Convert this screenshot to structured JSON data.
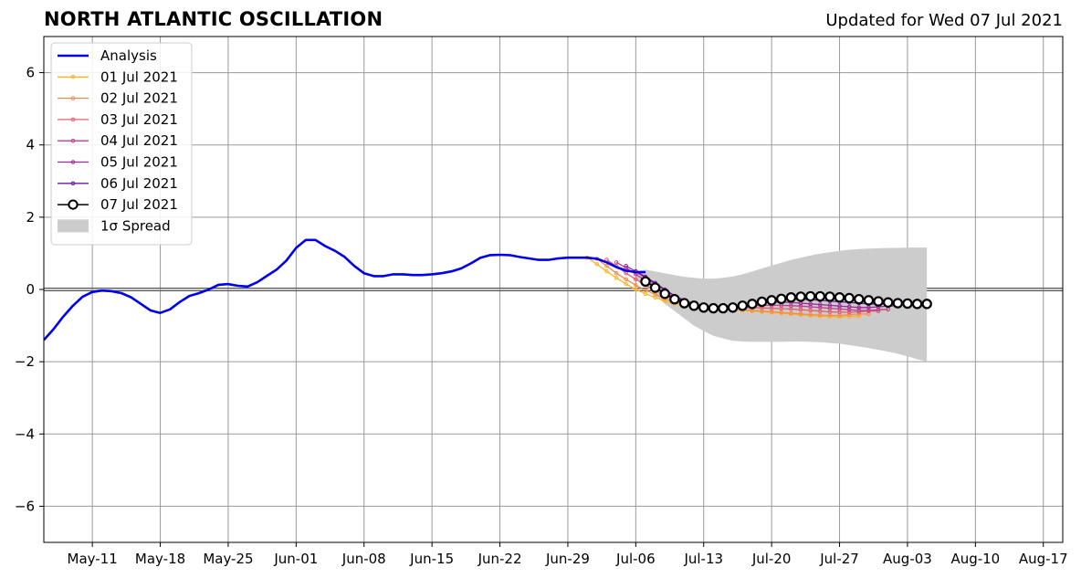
{
  "header": {
    "title": "NORTH ATLANTIC OSCILLATION",
    "subtitle": "Updated for Wed 07 Jul 2021"
  },
  "chart_data": {
    "type": "line",
    "title": "NORTH ATLANTIC OSCILLATION",
    "subtitle": "Updated for Wed 07 Jul 2021",
    "xlabel": "",
    "ylabel": "",
    "x_axis": "date (2021)",
    "xlim": [
      "2021-05-06",
      "2021-08-19"
    ],
    "ylim": [
      -7,
      7
    ],
    "x_ticks": [
      "May-11",
      "May-18",
      "May-25",
      "Jun-01",
      "Jun-08",
      "Jun-15",
      "Jun-22",
      "Jun-29",
      "Jul-06",
      "Jul-13",
      "Jul-20",
      "Jul-27",
      "Aug-03",
      "Aug-10",
      "Aug-17"
    ],
    "y_ticks": [
      6,
      4,
      2,
      0,
      -2,
      -4,
      -6
    ],
    "grid": true,
    "zero_line": true,
    "legend_position": "top-left",
    "legend": [
      "Analysis",
      "01 Jul 2021",
      "02 Jul 2021",
      "03 Jul 2021",
      "04 Jul 2021",
      "05 Jul 2021",
      "06 Jul 2021",
      "07 Jul 2021",
      "1σ Spread"
    ],
    "analysis": {
      "name": "Analysis",
      "color": "#0000ee",
      "x": [
        "2021-05-06",
        "2021-05-07",
        "2021-05-08",
        "2021-05-09",
        "2021-05-10",
        "2021-05-11",
        "2021-05-12",
        "2021-05-13",
        "2021-05-14",
        "2021-05-15",
        "2021-05-16",
        "2021-05-17",
        "2021-05-18",
        "2021-05-19",
        "2021-05-20",
        "2021-05-21",
        "2021-05-22",
        "2021-05-23",
        "2021-05-24",
        "2021-05-25",
        "2021-05-26",
        "2021-05-27",
        "2021-05-28",
        "2021-05-29",
        "2021-05-30",
        "2021-05-31",
        "2021-06-01",
        "2021-06-02",
        "2021-06-03",
        "2021-06-04",
        "2021-06-05",
        "2021-06-06",
        "2021-06-07",
        "2021-06-08",
        "2021-06-09",
        "2021-06-10",
        "2021-06-11",
        "2021-06-12",
        "2021-06-13",
        "2021-06-14",
        "2021-06-15",
        "2021-06-16",
        "2021-06-17",
        "2021-06-18",
        "2021-06-19",
        "2021-06-20",
        "2021-06-21",
        "2021-06-22",
        "2021-06-23",
        "2021-06-24",
        "2021-06-25",
        "2021-06-26",
        "2021-06-27",
        "2021-06-28",
        "2021-06-29",
        "2021-06-30",
        "2021-07-01",
        "2021-07-02",
        "2021-07-03",
        "2021-07-04",
        "2021-07-05",
        "2021-07-06",
        "2021-07-07"
      ],
      "values": [
        -1.4,
        -1.1,
        -0.75,
        -0.45,
        -0.2,
        -0.07,
        -0.03,
        -0.05,
        -0.1,
        -0.22,
        -0.4,
        -0.58,
        -0.65,
        -0.55,
        -0.35,
        -0.18,
        -0.1,
        0.0,
        0.13,
        0.15,
        0.1,
        0.08,
        0.2,
        0.38,
        0.55,
        0.8,
        1.15,
        1.37,
        1.37,
        1.2,
        1.07,
        0.9,
        0.65,
        0.45,
        0.37,
        0.37,
        0.42,
        0.42,
        0.4,
        0.4,
        0.42,
        0.45,
        0.5,
        0.58,
        0.72,
        0.88,
        0.95,
        0.96,
        0.95,
        0.9,
        0.86,
        0.82,
        0.82,
        0.86,
        0.88,
        0.88,
        0.88,
        0.85,
        0.75,
        0.62,
        0.52,
        0.48,
        0.48
      ]
    },
    "forecasts": [
      {
        "name": "01 Jul 2021",
        "color": "#fbb527",
        "start": "2021-07-01",
        "values": [
          0.88,
          0.7,
          0.5,
          0.32,
          0.15,
          0.0,
          -0.12,
          -0.22,
          -0.32,
          -0.4,
          -0.45,
          -0.48,
          -0.5,
          -0.52,
          -0.54,
          -0.56,
          -0.58,
          -0.6,
          -0.62,
          -0.64,
          -0.66,
          -0.68,
          -0.7,
          -0.72,
          -0.74,
          -0.75,
          -0.76,
          -0.75,
          -0.74
        ]
      },
      {
        "name": "02 Jul 2021",
        "color": "#f48c4c",
        "start": "2021-07-02",
        "values": [
          0.85,
          0.65,
          0.45,
          0.28,
          0.12,
          -0.02,
          -0.14,
          -0.25,
          -0.35,
          -0.42,
          -0.46,
          -0.48,
          -0.5,
          -0.52,
          -0.54,
          -0.56,
          -0.58,
          -0.6,
          -0.62,
          -0.64,
          -0.66,
          -0.68,
          -0.7,
          -0.71,
          -0.72,
          -0.72,
          -0.7,
          -0.68,
          -0.68
        ]
      },
      {
        "name": "03 Jul 2021",
        "color": "#e3606b",
        "start": "2021-07-03",
        "values": [
          0.82,
          0.65,
          0.45,
          0.28,
          0.12,
          -0.02,
          -0.16,
          -0.28,
          -0.38,
          -0.45,
          -0.48,
          -0.5,
          -0.5,
          -0.5,
          -0.5,
          -0.5,
          -0.51,
          -0.52,
          -0.53,
          -0.54,
          -0.56,
          -0.58,
          -0.6,
          -0.62,
          -0.63,
          -0.63,
          -0.62,
          -0.6,
          -0.6
        ]
      },
      {
        "name": "04 Jul 2021",
        "color": "#c23f8a",
        "start": "2021-07-04",
        "values": [
          0.75,
          0.6,
          0.42,
          0.25,
          0.08,
          -0.08,
          -0.22,
          -0.34,
          -0.42,
          -0.48,
          -0.5,
          -0.5,
          -0.48,
          -0.46,
          -0.45,
          -0.44,
          -0.44,
          -0.44,
          -0.45,
          -0.46,
          -0.48,
          -0.5,
          -0.52,
          -0.54,
          -0.56,
          -0.58,
          -0.58,
          -0.56,
          -0.55
        ]
      },
      {
        "name": "05 Jul 2021",
        "color": "#9a2a98",
        "start": "2021-07-05",
        "values": [
          0.65,
          0.5,
          0.32,
          0.15,
          -0.02,
          -0.18,
          -0.32,
          -0.42,
          -0.48,
          -0.5,
          -0.5,
          -0.48,
          -0.44,
          -0.4,
          -0.37,
          -0.35,
          -0.35,
          -0.36,
          -0.38,
          -0.4,
          -0.42,
          -0.44,
          -0.46,
          -0.48,
          -0.5,
          -0.5,
          -0.48,
          -0.46,
          -0.45
        ]
      },
      {
        "name": "06 Jul 2021",
        "color": "#6a1b9a",
        "start": "2021-07-06",
        "values": [
          0.5,
          0.35,
          0.18,
          0.0,
          -0.18,
          -0.3,
          -0.4,
          -0.46,
          -0.5,
          -0.5,
          -0.48,
          -0.44,
          -0.38,
          -0.32,
          -0.28,
          -0.26,
          -0.26,
          -0.27,
          -0.28,
          -0.3,
          -0.32,
          -0.34,
          -0.36,
          -0.38,
          -0.4,
          -0.4,
          -0.38,
          -0.36,
          -0.35
        ]
      }
    ],
    "current_forecast": {
      "name": "07 Jul 2021",
      "color": "#000000",
      "marker": "open-circle",
      "start": "2021-07-07",
      "values": [
        0.22,
        0.05,
        -0.12,
        -0.27,
        -0.38,
        -0.45,
        -0.5,
        -0.52,
        -0.52,
        -0.5,
        -0.45,
        -0.4,
        -0.34,
        -0.3,
        -0.26,
        -0.22,
        -0.2,
        -0.19,
        -0.19,
        -0.2,
        -0.22,
        -0.24,
        -0.27,
        -0.3,
        -0.33,
        -0.36,
        -0.38,
        -0.39,
        -0.4,
        -0.4
      ]
    },
    "spread": {
      "name": "1σ Spread",
      "color": "#cccccc",
      "start": "2021-07-06",
      "upper": [
        0.5,
        0.55,
        0.5,
        0.45,
        0.4,
        0.35,
        0.32,
        0.3,
        0.3,
        0.32,
        0.36,
        0.42,
        0.5,
        0.58,
        0.66,
        0.74,
        0.82,
        0.88,
        0.94,
        0.99,
        1.03,
        1.07,
        1.1,
        1.12,
        1.13,
        1.14,
        1.15,
        1.15,
        1.16,
        1.16,
        1.16
      ],
      "lower": [
        0.3,
        0.1,
        -0.15,
        -0.4,
        -0.6,
        -0.8,
        -1.0,
        -1.15,
        -1.28,
        -1.36,
        -1.42,
        -1.44,
        -1.45,
        -1.45,
        -1.45,
        -1.45,
        -1.44,
        -1.44,
        -1.45,
        -1.46,
        -1.48,
        -1.5,
        -1.54,
        -1.58,
        -1.62,
        -1.67,
        -1.72,
        -1.78,
        -1.85,
        -1.93,
        -2.0
      ]
    }
  }
}
